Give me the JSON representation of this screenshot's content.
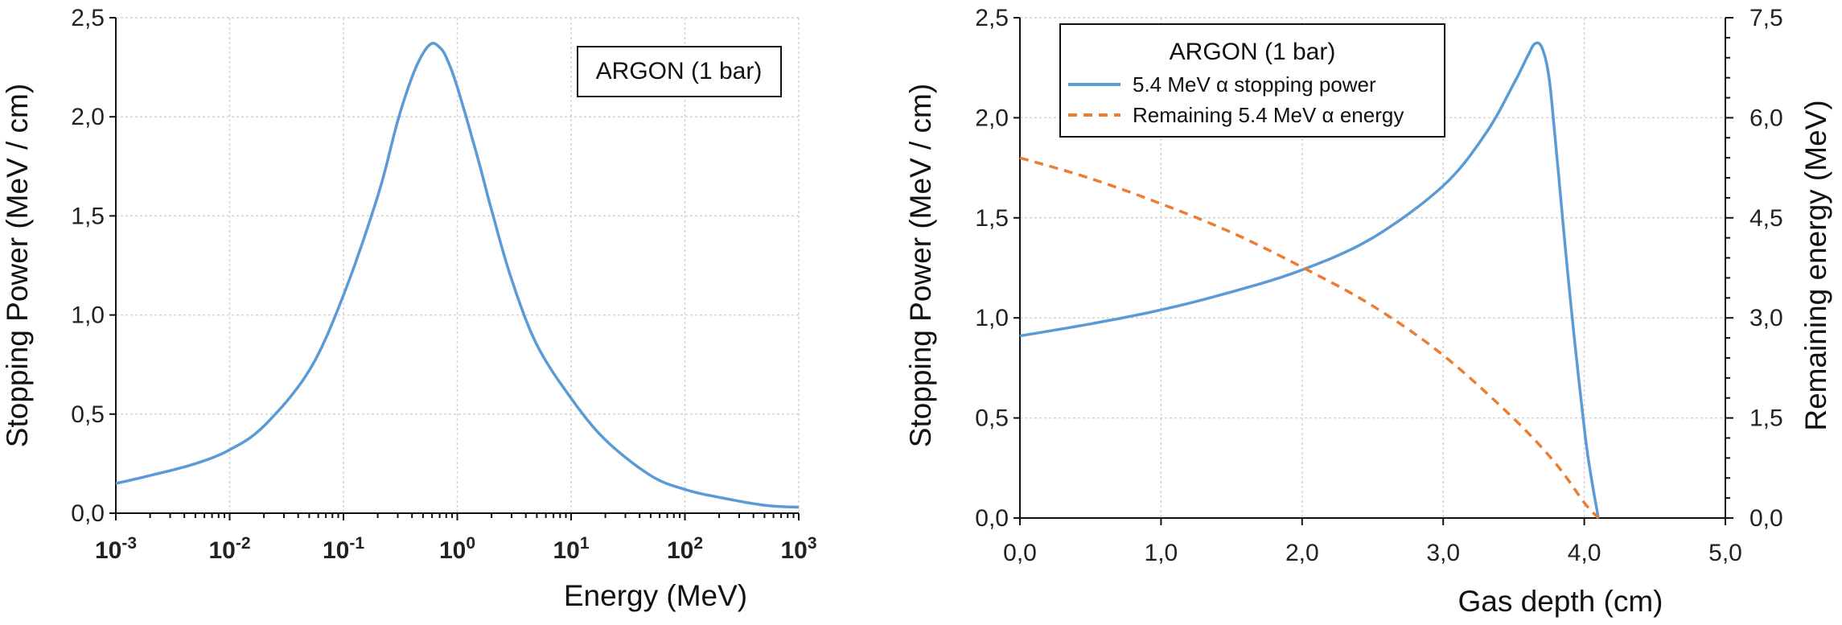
{
  "chart_data": [
    {
      "type": "line",
      "xscale": "log",
      "xlabel": "Energy (MeV)",
      "ylabel": "Stopping Power  (MeV / cm)",
      "xlim": [
        0.001,
        1000
      ],
      "ylim": [
        0,
        2.5
      ],
      "x_ticks": [
        {
          "base": "10",
          "exp": "-3"
        },
        {
          "base": "10",
          "exp": "-2"
        },
        {
          "base": "10",
          "exp": "-1"
        },
        {
          "base": "10",
          "exp": "0"
        },
        {
          "base": "10",
          "exp": "1"
        },
        {
          "base": "10",
          "exp": "2"
        },
        {
          "base": "10",
          "exp": "3"
        }
      ],
      "y_ticks": [
        "0,0",
        "0,5",
        "1,0",
        "1,5",
        "2,0",
        "2,5"
      ],
      "y_tick_values": [
        0,
        0.5,
        1.0,
        1.5,
        2.0,
        2.5
      ],
      "grid": true,
      "annotation": "ARGON (1 bar)",
      "series": [
        {
          "name": "Stopping power",
          "color": "#5b9bd5",
          "x": [
            0.001,
            0.002,
            0.005,
            0.01,
            0.02,
            0.05,
            0.1,
            0.2,
            0.3,
            0.4,
            0.5,
            0.6,
            0.7,
            0.8,
            1.0,
            1.5,
            2,
            3,
            5,
            10,
            20,
            50,
            100,
            200,
            500,
            1000
          ],
          "y": [
            0.15,
            0.19,
            0.25,
            0.32,
            0.44,
            0.72,
            1.1,
            1.6,
            1.98,
            2.2,
            2.32,
            2.37,
            2.35,
            2.3,
            2.15,
            1.8,
            1.53,
            1.18,
            0.85,
            0.58,
            0.37,
            0.19,
            0.12,
            0.08,
            0.04,
            0.03
          ]
        }
      ]
    },
    {
      "type": "line",
      "xlabel": "Gas depth (cm)",
      "ylabel": "Stopping Power  (MeV / cm)",
      "y2label": "Remaining  energy (MeV)",
      "xlim": [
        0,
        5
      ],
      "ylim": [
        0,
        2.5
      ],
      "y2lim": [
        0,
        7.5
      ],
      "x_ticks": [
        "0,0",
        "1,0",
        "2,0",
        "3,0",
        "4,0",
        "5,0"
      ],
      "x_tick_values": [
        0,
        1,
        2,
        3,
        4,
        5
      ],
      "y_ticks": [
        "0,0",
        "0,5",
        "1,0",
        "1,5",
        "2,0",
        "2,5"
      ],
      "y_tick_values": [
        0,
        0.5,
        1.0,
        1.5,
        2.0,
        2.5
      ],
      "y2_ticks": [
        "0,0",
        "1,5",
        "3,0",
        "4,5",
        "6,0",
        "7,5"
      ],
      "y2_tick_values": [
        0,
        1.5,
        3.0,
        4.5,
        6.0,
        7.5
      ],
      "grid": true,
      "legend": {
        "title": "ARGON (1 bar)",
        "placement": "top-left"
      },
      "series": [
        {
          "name": "5.4 MeV α stopping power",
          "color": "#5b9bd5",
          "style": "solid",
          "axis": "left",
          "x": [
            0,
            0.5,
            1.0,
            1.5,
            2.0,
            2.5,
            3.0,
            3.3,
            3.5,
            3.6,
            3.65,
            3.7,
            3.75,
            3.8,
            3.9,
            4.0,
            4.05,
            4.1
          ],
          "y": [
            0.91,
            0.97,
            1.04,
            1.13,
            1.24,
            1.4,
            1.66,
            1.92,
            2.17,
            2.31,
            2.37,
            2.35,
            2.2,
            1.85,
            1.1,
            0.45,
            0.2,
            0.0
          ]
        },
        {
          "name": "Remaining 5.4 MeV α energy",
          "color": "#ed7d31",
          "style": "dashed",
          "axis": "right",
          "x": [
            0,
            0.5,
            1.0,
            1.5,
            2.0,
            2.5,
            3.0,
            3.5,
            3.8,
            4.0,
            4.1
          ],
          "y": [
            5.4,
            5.09,
            4.71,
            4.28,
            3.76,
            3.18,
            2.44,
            1.49,
            0.81,
            0.23,
            0.0
          ]
        }
      ]
    }
  ]
}
